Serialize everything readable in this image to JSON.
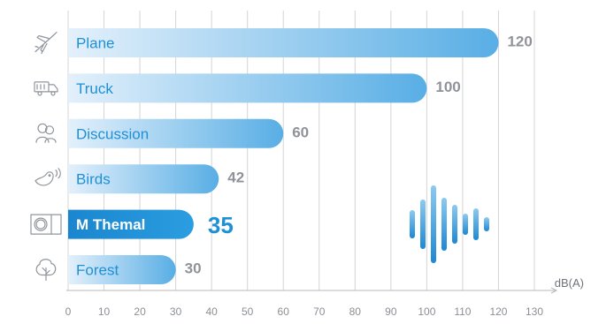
{
  "chart_data": {
    "type": "bar",
    "orientation": "horizontal",
    "categories": [
      "Plane",
      "Truck",
      "Discussion",
      "Birds",
      "M Themal",
      "Forest"
    ],
    "values": [
      120,
      100,
      60,
      42,
      35,
      30
    ],
    "highlight_index": 4,
    "icons": [
      "plane-icon",
      "truck-icon",
      "discussion-icon",
      "bird-icon",
      "m-themal-icon",
      "tree-icon"
    ],
    "xlabel": "dB(A)",
    "xlim": [
      0,
      130
    ],
    "xticks": [
      0,
      10,
      20,
      30,
      40,
      50,
      60,
      70,
      80,
      90,
      100,
      110,
      120,
      130
    ],
    "grid": true,
    "colors": {
      "bar_light": "#dcecf9",
      "bar_dark": "#5ab0e6",
      "highlight": "#1e90d6",
      "text": "#1e90d6",
      "value": "#8f9399",
      "grid": "#d4d4d4",
      "icon": "#8f959c"
    }
  }
}
